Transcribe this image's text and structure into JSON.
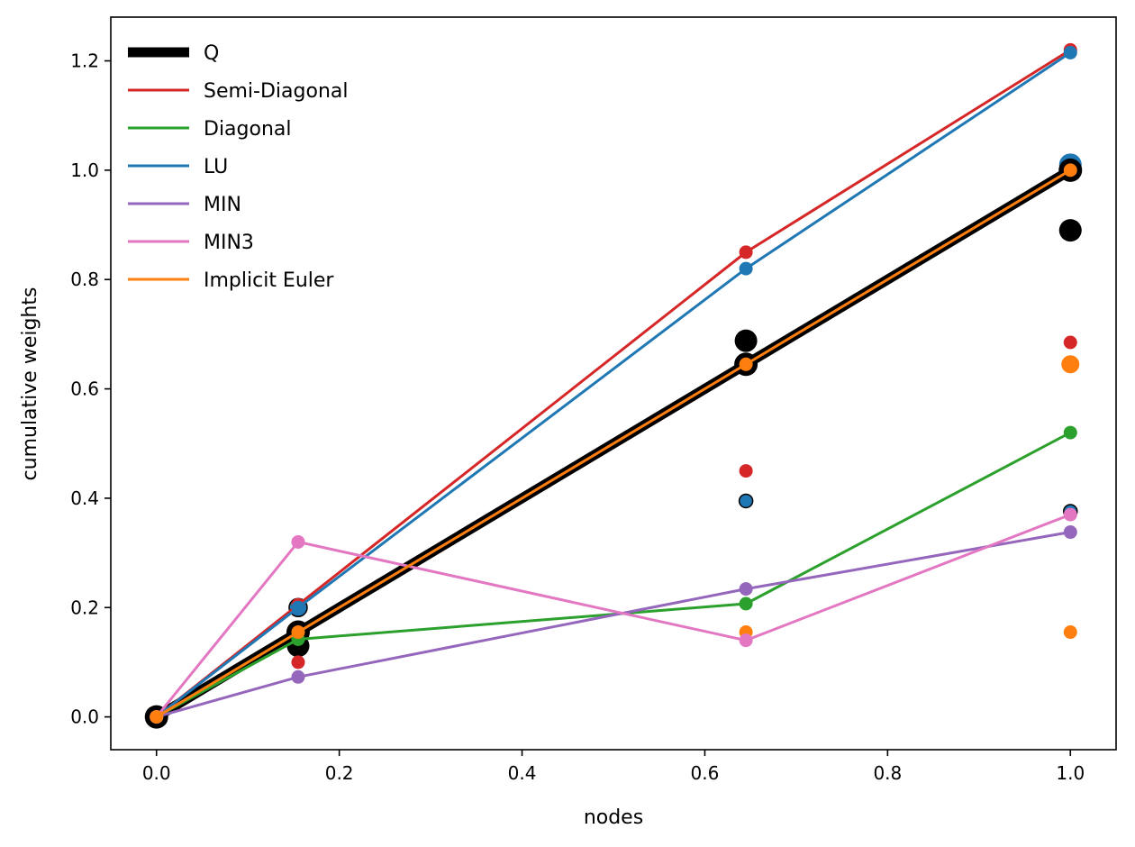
{
  "chart_data": {
    "type": "line",
    "title": "",
    "xlabel": "nodes",
    "ylabel": "cumulative weights",
    "xlim": [
      -0.05,
      1.05
    ],
    "ylim": [
      -0.06,
      1.28
    ],
    "xticks": [
      0.0,
      0.2,
      0.4,
      0.6,
      0.8,
      1.0
    ],
    "xtick_labels": [
      "0.0",
      "0.2",
      "0.4",
      "0.6",
      "0.8",
      "1.0"
    ],
    "yticks": [
      0.0,
      0.2,
      0.4,
      0.6,
      0.8,
      1.0,
      1.2
    ],
    "ytick_labels": [
      "0.0",
      "0.2",
      "0.4",
      "0.6",
      "0.8",
      "1.0",
      "1.2"
    ],
    "grid": false,
    "legend_position": "top-left",
    "series": [
      {
        "name": "Q",
        "color": "#000000",
        "thick": true,
        "x": [
          0.0,
          0.155,
          0.645,
          1.0
        ],
        "y": [
          0.0,
          0.155,
          0.645,
          1.0
        ]
      },
      {
        "name": "Semi-Diagonal",
        "color": "#d62728",
        "x": [
          0.0,
          0.155,
          0.645,
          1.0
        ],
        "y": [
          0.0,
          0.205,
          0.85,
          1.22
        ]
      },
      {
        "name": "Diagonal",
        "color": "#2ca02c",
        "x": [
          0.0,
          0.155,
          0.645,
          1.0
        ],
        "y": [
          0.0,
          0.142,
          0.207,
          0.52
        ]
      },
      {
        "name": "LU",
        "color": "#1f77b4",
        "x": [
          0.0,
          0.155,
          0.645,
          1.0
        ],
        "y": [
          0.0,
          0.2,
          0.82,
          1.215
        ]
      },
      {
        "name": "MIN",
        "color": "#9467bd",
        "x": [
          0.0,
          0.155,
          0.645,
          1.0
        ],
        "y": [
          0.0,
          0.073,
          0.234,
          0.338
        ]
      },
      {
        "name": "MIN3",
        "color": "#e377c2",
        "x": [
          0.0,
          0.155,
          0.645,
          1.0
        ],
        "y": [
          0.0,
          0.32,
          0.14,
          0.37
        ]
      },
      {
        "name": "Implicit Euler",
        "color": "#ff7f0e",
        "x": [
          0.0,
          0.155,
          0.645,
          1.0
        ],
        "y": [
          0.0,
          0.155,
          0.645,
          1.0
        ]
      }
    ],
    "extra_points": [
      {
        "x": 0.155,
        "y": 0.13,
        "color": "#000000",
        "size": "large"
      },
      {
        "x": 0.155,
        "y": 0.1,
        "color": "#d62728",
        "size": "small"
      },
      {
        "x": 0.155,
        "y": 0.2,
        "color": "#1f77b4",
        "size": "medium",
        "edge": true
      },
      {
        "x": 0.645,
        "y": 0.688,
        "color": "#000000",
        "size": "large"
      },
      {
        "x": 0.645,
        "y": 0.45,
        "color": "#d62728",
        "size": "small"
      },
      {
        "x": 0.645,
        "y": 0.395,
        "color": "#1f77b4",
        "size": "small",
        "edge": true
      },
      {
        "x": 0.645,
        "y": 0.155,
        "color": "#ff7f0e",
        "size": "small"
      },
      {
        "x": 1.0,
        "y": 1.01,
        "color": "#1f77b4",
        "size": "large"
      },
      {
        "x": 1.0,
        "y": 0.89,
        "color": "#000000",
        "size": "large"
      },
      {
        "x": 1.0,
        "y": 0.685,
        "color": "#d62728",
        "size": "small"
      },
      {
        "x": 1.0,
        "y": 0.645,
        "color": "#ff7f0e",
        "size": "medium"
      },
      {
        "x": 1.0,
        "y": 0.376,
        "color": "#1f77b4",
        "size": "small",
        "edge": true
      },
      {
        "x": 1.0,
        "y": 0.155,
        "color": "#ff7f0e",
        "size": "small"
      }
    ]
  }
}
